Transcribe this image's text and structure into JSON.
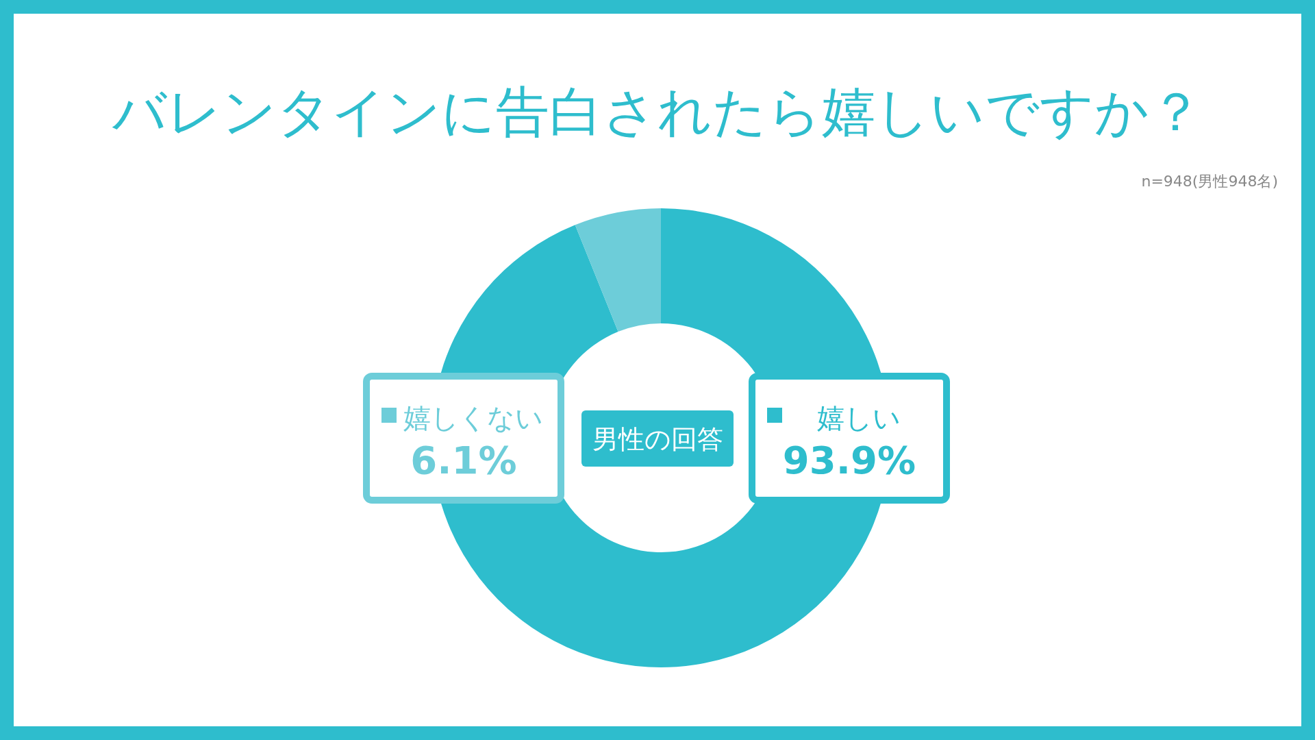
{
  "chart_data": {
    "type": "donut",
    "title": "バレンタインに告白されたら嬉しいですか？",
    "subtitle": "男性の回答",
    "annotations": [
      "n=948(男性948名)"
    ],
    "categories": [
      "嬉しい",
      "嬉しくない"
    ],
    "values": [
      93.9,
      6.1
    ],
    "colors": [
      "#2ebdcd",
      "#6dcdd9"
    ],
    "value_labels": [
      "93.9%",
      "6.1%"
    ],
    "legend": "center"
  }
}
